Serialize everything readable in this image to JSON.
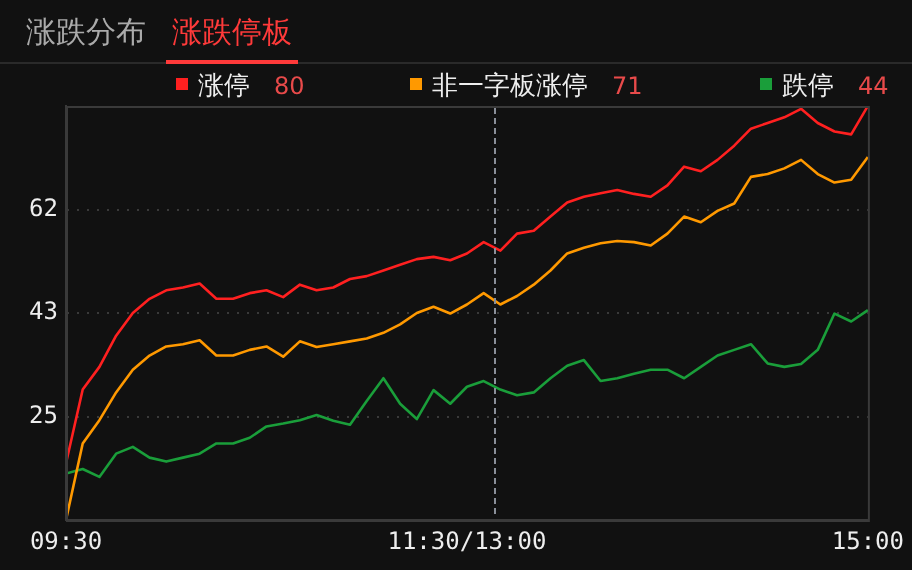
{
  "chart_data": {
    "type": "line",
    "title": "涨跌停板",
    "subtitle": "涨跌分布",
    "categories": [
      "09:30",
      null,
      null,
      null,
      null,
      null,
      null,
      null,
      null,
      null,
      null,
      null,
      null,
      null,
      null,
      null,
      null,
      null,
      null,
      null,
      null,
      null,
      null,
      null,
      "11:30/13:00",
      null,
      null,
      null,
      null,
      null,
      null,
      null,
      null,
      null,
      null,
      null,
      null,
      null,
      null,
      null,
      null,
      null,
      null,
      null,
      null,
      null,
      null,
      null,
      "15:00"
    ],
    "ylim": [
      7,
      80
    ],
    "yticks": [
      {
        "value": 25.25,
        "label": "25"
      },
      {
        "value": 43.5,
        "label": "43"
      },
      {
        "value": 61.75,
        "label": "62"
      }
    ],
    "grid": "y",
    "legend": "top",
    "line_style": "solid",
    "marker": "none",
    "annotations": [
      "80",
      "71",
      "44"
    ],
    "series": [
      {
        "name": "涨停",
        "color": "#ff2020",
        "values": [
          17,
          30,
          34,
          39.5,
          43.5,
          46,
          47.5,
          48,
          48.7,
          46,
          46,
          47,
          47.5,
          46.3,
          48.5,
          47.5,
          48,
          49.5,
          50,
          51,
          52,
          53,
          53.4,
          52.8,
          54,
          56,
          54.5,
          57.5,
          58,
          60.5,
          63,
          64,
          64.6,
          65.2,
          64.5,
          64,
          66,
          69.3,
          68.5,
          70.5,
          73,
          76,
          77,
          78,
          79.5,
          77,
          75.5,
          75,
          80
        ]
      },
      {
        "name": "非一字板涨停",
        "color": "#ff9900",
        "values": [
          7,
          20.5,
          24.6,
          29.5,
          33.5,
          36,
          37.6,
          38,
          38.7,
          36,
          36,
          37,
          37.6,
          35.8,
          38.5,
          37.5,
          38,
          38.5,
          39,
          40,
          41.5,
          43.5,
          44.6,
          43.4,
          45,
          47,
          45,
          46.5,
          48.5,
          51,
          54,
          55,
          55.8,
          56.2,
          56,
          55.4,
          57.5,
          60.5,
          59.5,
          61.5,
          62.8,
          67.5,
          68,
          69,
          70.5,
          68,
          66.5,
          67,
          71
        ]
      },
      {
        "name": "跌停",
        "color": "#1a9e3a",
        "values": [
          15.2,
          16,
          14.6,
          18.7,
          19.9,
          18,
          17.3,
          18,
          18.7,
          20.5,
          20.5,
          21.5,
          23.5,
          24,
          24.6,
          25.5,
          24.5,
          23.8,
          28,
          32,
          27.5,
          24.8,
          29.9,
          27.5,
          30.5,
          31.5,
          30,
          29,
          29.5,
          32,
          34.2,
          35.2,
          31.5,
          32,
          32.8,
          33.5,
          33.5,
          32,
          34,
          36,
          37,
          38,
          34.6,
          34,
          34.5,
          37,
          43.4,
          42,
          44
        ]
      }
    ]
  }
}
